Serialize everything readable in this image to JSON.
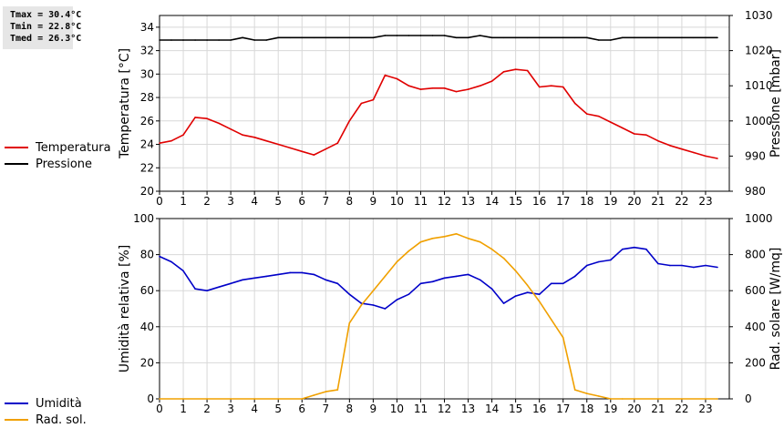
{
  "stats": [
    "Tmax = 30.4°C",
    "Tmin = 22.8°C",
    "Tmed = 26.3°C"
  ],
  "legend_top": [
    {
      "name": "Temperatura",
      "color": "#e00000"
    },
    {
      "name": "Pressione",
      "color": "#000000"
    }
  ],
  "legend_bottom": [
    {
      "name": "Umidità",
      "color": "#0000c8"
    },
    {
      "name": "Rad. sol.",
      "color": "#f0a000"
    }
  ],
  "chart_data": [
    {
      "type": "line",
      "xlabel": "",
      "xlim": [
        0,
        24
      ],
      "xticks": [
        0,
        1,
        2,
        3,
        4,
        5,
        6,
        7,
        8,
        9,
        10,
        11,
        12,
        13,
        14,
        15,
        16,
        17,
        18,
        19,
        20,
        21,
        22,
        23
      ],
      "ylabel": "Temperatura [°C]",
      "ylim": [
        20,
        35
      ],
      "yticks": [
        20,
        22,
        24,
        26,
        28,
        30,
        32,
        34
      ],
      "y2label": "Pressione [mbar]",
      "y2lim": [
        980,
        1030
      ],
      "y2ticks": [
        980,
        990,
        1000,
        1010,
        1020,
        1030
      ],
      "grid": true,
      "series": [
        {
          "name": "Temperatura",
          "axis": "left",
          "color": "#e00000",
          "x": [
            0,
            0.5,
            1,
            1.5,
            2,
            2.5,
            3,
            3.5,
            4,
            4.5,
            5,
            5.5,
            6,
            6.5,
            7,
            7.5,
            8,
            8.5,
            9,
            9.5,
            10,
            10.5,
            11,
            11.5,
            12,
            12.5,
            13,
            13.5,
            14,
            14.5,
            15,
            15.5,
            16,
            16.5,
            17,
            17.5,
            18,
            18.5,
            19,
            19.5,
            20,
            20.5,
            21,
            21.5,
            22,
            22.5,
            23,
            23.5
          ],
          "values": [
            24.1,
            24.3,
            24.8,
            26.3,
            26.2,
            25.8,
            25.3,
            24.8,
            24.6,
            24.3,
            24.0,
            23.7,
            23.4,
            23.1,
            23.6,
            24.1,
            26.0,
            27.5,
            27.8,
            29.9,
            29.6,
            29.0,
            28.7,
            28.8,
            28.8,
            28.5,
            28.7,
            29.0,
            29.4,
            30.2,
            30.4,
            30.3,
            28.9,
            29.0,
            28.9,
            27.5,
            26.6,
            26.4,
            25.9,
            25.4,
            24.9,
            24.8,
            24.3,
            23.9,
            23.6,
            23.3,
            23.0,
            22.8
          ]
        },
        {
          "name": "Pressione",
          "axis": "right",
          "color": "#000000",
          "x": [
            0,
            0.5,
            1,
            1.5,
            2,
            2.5,
            3,
            3.5,
            4,
            4.5,
            5,
            5.5,
            6,
            6.5,
            7,
            7.5,
            8,
            8.5,
            9,
            9.5,
            10,
            10.5,
            11,
            11.5,
            12,
            12.5,
            13,
            13.5,
            14,
            14.5,
            15,
            15.5,
            16,
            16.5,
            17,
            17.5,
            18,
            18.5,
            19,
            19.5,
            20,
            20.5,
            21,
            21.5,
            22,
            22.5,
            23,
            23.5
          ],
          "values": [
            1023,
            1023,
            1023,
            1023,
            1023,
            1023,
            1023,
            1023.7,
            1023,
            1023,
            1023.7,
            1023.7,
            1023.7,
            1023.7,
            1023.7,
            1023.7,
            1023.7,
            1023.7,
            1023.7,
            1024.3,
            1024.3,
            1024.3,
            1024.3,
            1024.3,
            1024.3,
            1023.7,
            1023.7,
            1024.3,
            1023.7,
            1023.7,
            1023.7,
            1023.7,
            1023.7,
            1023.7,
            1023.7,
            1023.7,
            1023.7,
            1023,
            1023,
            1023.7,
            1023.7,
            1023.7,
            1023.7,
            1023.7,
            1023.7,
            1023.7,
            1023.7,
            1023.7
          ]
        }
      ]
    },
    {
      "type": "line",
      "xlabel": "",
      "xlim": [
        0,
        24
      ],
      "xticks": [
        0,
        1,
        2,
        3,
        4,
        5,
        6,
        7,
        8,
        9,
        10,
        11,
        12,
        13,
        14,
        15,
        16,
        17,
        18,
        19,
        20,
        21,
        22,
        23
      ],
      "ylabel": "Umidità relativa [%]",
      "ylim": [
        0,
        100
      ],
      "yticks": [
        0,
        20,
        40,
        60,
        80,
        100
      ],
      "y2label": "Rad. solare [W/mq]",
      "y2lim": [
        0,
        1000
      ],
      "y2ticks": [
        0,
        200,
        400,
        600,
        800,
        1000
      ],
      "grid": true,
      "series": [
        {
          "name": "Umidità",
          "axis": "left",
          "color": "#0000c8",
          "x": [
            0,
            0.5,
            1,
            1.5,
            2,
            2.5,
            3,
            3.5,
            4,
            4.5,
            5,
            5.5,
            6,
            6.5,
            7,
            7.5,
            8,
            8.5,
            9,
            9.5,
            10,
            10.5,
            11,
            11.5,
            12,
            12.5,
            13,
            13.5,
            14,
            14.5,
            15,
            15.5,
            16,
            16.5,
            17,
            17.5,
            18,
            18.5,
            19,
            19.5,
            20,
            20.5,
            21,
            21.5,
            22,
            22.5,
            23,
            23.5
          ],
          "values": [
            79,
            76,
            71,
            61,
            60,
            62,
            64,
            66,
            67,
            68,
            69,
            70,
            70,
            69,
            66,
            64,
            58,
            53,
            52,
            50,
            55,
            58,
            64,
            65,
            67,
            68,
            69,
            66,
            61,
            53,
            57,
            59,
            58,
            64,
            64,
            68,
            74,
            76,
            77,
            83,
            84,
            83,
            75,
            74,
            74,
            73,
            74,
            73
          ]
        },
        {
          "name": "Rad. sol.",
          "axis": "right",
          "color": "#f0a000",
          "x": [
            0,
            1,
            2,
            3,
            4,
            5,
            6,
            6.5,
            7,
            7.5,
            8,
            8.5,
            9,
            9.5,
            10,
            10.5,
            11,
            11.5,
            12,
            12.5,
            13,
            13.5,
            14,
            14.5,
            15,
            15.5,
            16,
            16.5,
            17,
            17.5,
            18,
            18.5,
            19,
            19.5,
            20,
            21,
            22,
            23,
            23.5
          ],
          "values": [
            0,
            0,
            0,
            0,
            0,
            0,
            0,
            20,
            40,
            50,
            420,
            520,
            600,
            680,
            760,
            820,
            870,
            890,
            900,
            915,
            890,
            870,
            830,
            780,
            710,
            630,
            540,
            440,
            340,
            50,
            30,
            15,
            0,
            0,
            0,
            0,
            0,
            0,
            0
          ]
        }
      ]
    }
  ]
}
